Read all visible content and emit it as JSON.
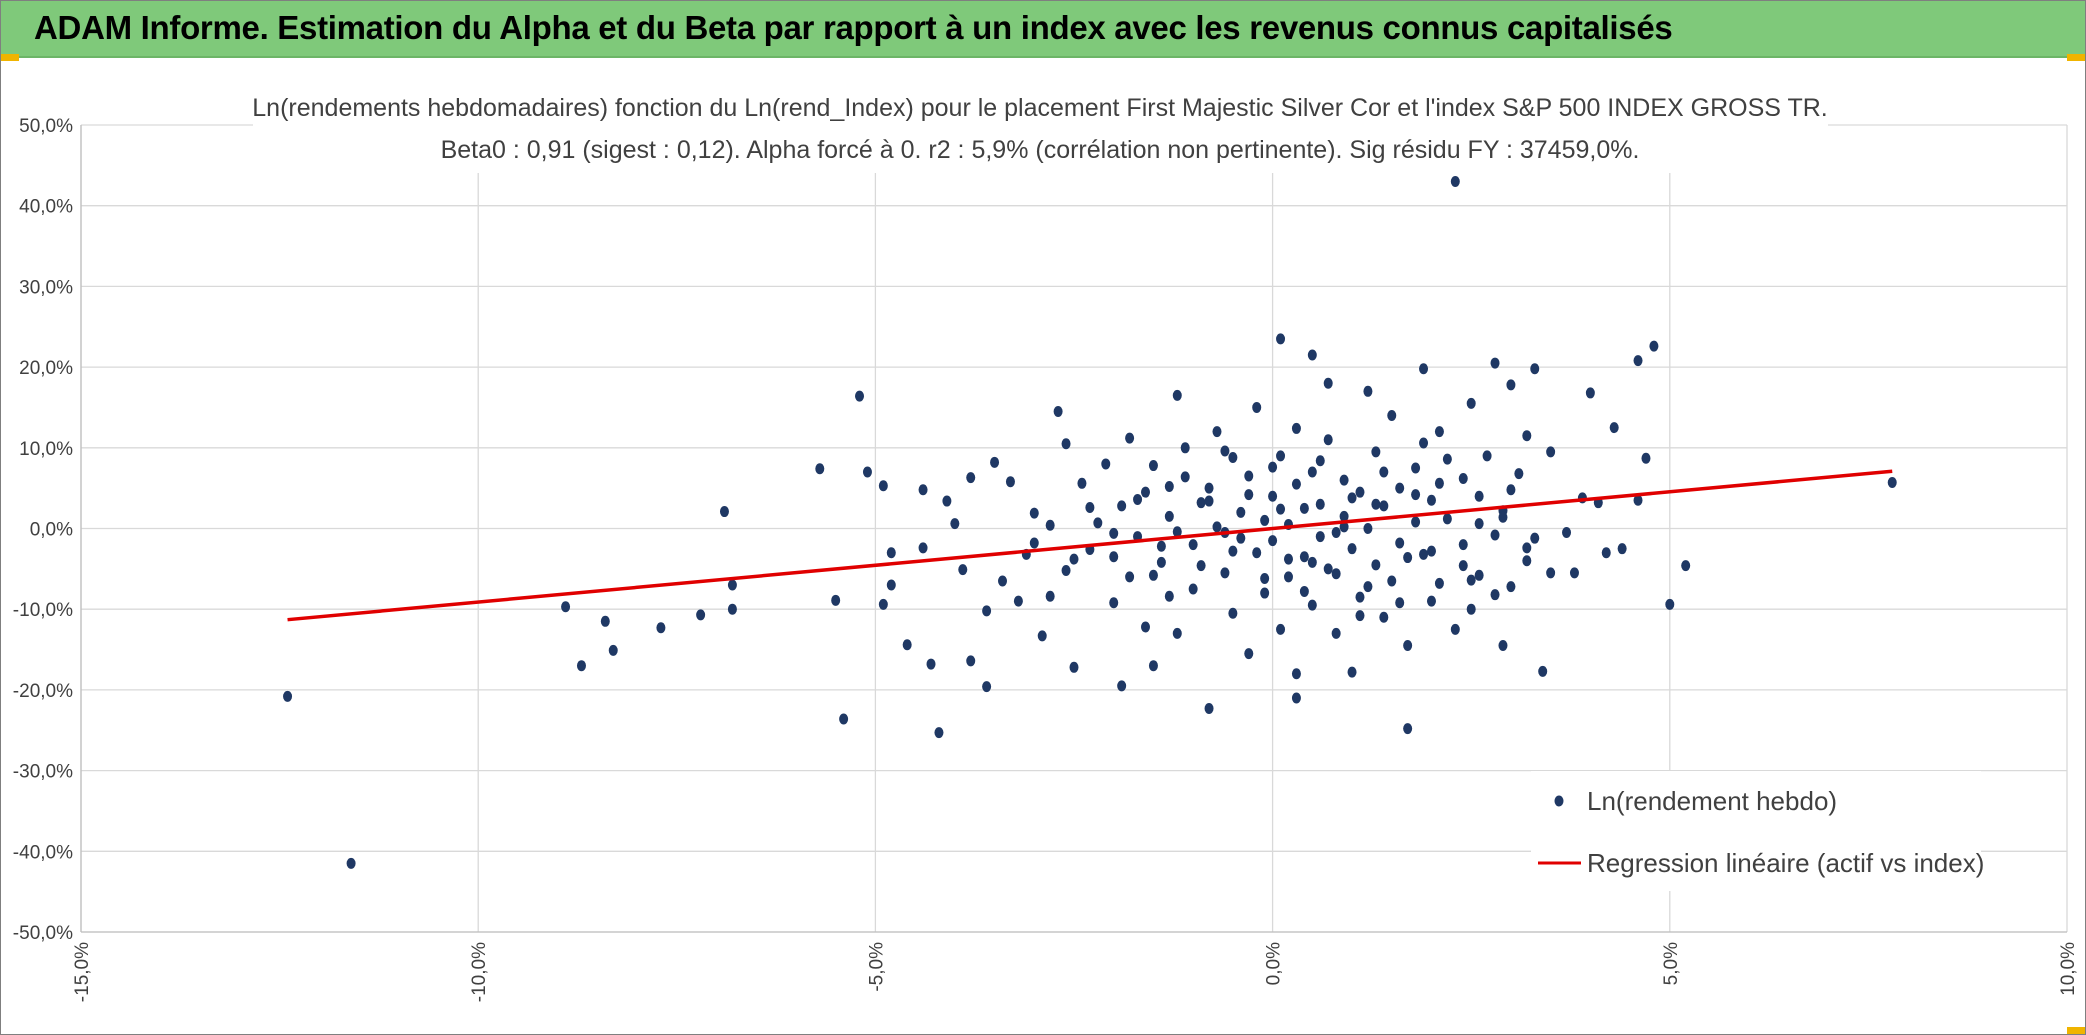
{
  "header": {
    "title": "ADAM Informe. Estimation du Alpha et du Beta par rapport à un index avec les revenus connus capitalisés"
  },
  "colors": {
    "banner": "#7fc97a",
    "points": "#1f3864",
    "regression": "#e00000",
    "grid": "#d9d9d9",
    "accent": "#f0b400"
  },
  "chart_data": {
    "type": "scatter",
    "title_line1": "Ln(rendements hebdomadaires) fonction du Ln(rend_Index) pour le placement First Majestic Silver Cor et l'index S&P 500 INDEX GROSS TR.",
    "title_line2": "Beta0 : 0,91 (sigest : 0,12). Alpha forcé à 0. r2 : 5,9% (corrélation non pertinente). Sig résidu FY : 37459,0%.",
    "xlim": [
      -15,
      10
    ],
    "ylim": [
      -50,
      50
    ],
    "x_ticks": [
      "-15,0%",
      "-10,0%",
      "-5,0%",
      "0,0%",
      "5,0%",
      "10,0%"
    ],
    "y_ticks": [
      "50,0%",
      "40,0%",
      "30,0%",
      "20,0%",
      "10,0%",
      "0,0%",
      "-10,0%",
      "-20,0%",
      "-30,0%",
      "-40,0%",
      "-50,0%"
    ],
    "grid": true,
    "legend_position": "bottom-right",
    "series": [
      {
        "name": "Ln(rendement hebdo)",
        "kind": "scatter",
        "points": [
          [
            -12.4,
            -20.8
          ],
          [
            -11.6,
            -41.5
          ],
          [
            -8.9,
            -9.7
          ],
          [
            -8.7,
            -17.0
          ],
          [
            -8.4,
            -11.5
          ],
          [
            -8.3,
            -15.1
          ],
          [
            -7.7,
            -12.3
          ],
          [
            -7.2,
            -10.7
          ],
          [
            -6.9,
            2.1
          ],
          [
            -6.8,
            -7.0
          ],
          [
            -6.8,
            -10.0
          ],
          [
            -5.7,
            7.4
          ],
          [
            -5.5,
            -8.9
          ],
          [
            -5.4,
            -23.6
          ],
          [
            -5.2,
            16.4
          ],
          [
            -5.1,
            7.0
          ],
          [
            -4.9,
            5.3
          ],
          [
            -4.9,
            -9.4
          ],
          [
            -4.8,
            -3.0
          ],
          [
            -4.8,
            -7.0
          ],
          [
            -4.6,
            -14.4
          ],
          [
            -4.4,
            -2.4
          ],
          [
            -4.4,
            4.8
          ],
          [
            -4.3,
            -16.8
          ],
          [
            -4.2,
            -25.3
          ],
          [
            -4.1,
            3.4
          ],
          [
            -4.0,
            0.6
          ],
          [
            -3.9,
            -5.1
          ],
          [
            -3.8,
            -16.4
          ],
          [
            -3.8,
            6.3
          ],
          [
            -3.6,
            -10.2
          ],
          [
            -3.6,
            -19.6
          ],
          [
            -3.5,
            8.2
          ],
          [
            -3.4,
            -6.5
          ],
          [
            -3.3,
            5.8
          ],
          [
            -3.2,
            -9.0
          ],
          [
            -3.1,
            -3.2
          ],
          [
            -3.0,
            1.9
          ],
          [
            -2.9,
            -13.3
          ],
          [
            -2.8,
            -8.4
          ],
          [
            -2.7,
            14.5
          ],
          [
            -2.6,
            10.5
          ],
          [
            -2.6,
            -5.2
          ],
          [
            -2.5,
            -17.2
          ],
          [
            -2.4,
            5.6
          ],
          [
            -2.3,
            -2.6
          ],
          [
            -2.2,
            0.7
          ],
          [
            -2.1,
            8.0
          ],
          [
            -2.0,
            -9.2
          ],
          [
            -2.0,
            -3.5
          ],
          [
            -1.9,
            -19.5
          ],
          [
            -1.8,
            11.2
          ],
          [
            -1.8,
            -6.0
          ],
          [
            -1.7,
            -1.0
          ],
          [
            -1.6,
            4.5
          ],
          [
            -1.6,
            -12.2
          ],
          [
            -1.5,
            -17.0
          ],
          [
            -1.5,
            7.8
          ],
          [
            -1.4,
            -4.2
          ],
          [
            -1.3,
            -8.4
          ],
          [
            -1.3,
            1.5
          ],
          [
            -1.2,
            16.5
          ],
          [
            -1.2,
            -13.0
          ],
          [
            -1.1,
            10.0
          ],
          [
            -1.0,
            -2.0
          ],
          [
            -1.0,
            -7.5
          ],
          [
            -0.9,
            3.2
          ],
          [
            -0.8,
            -22.3
          ],
          [
            -0.8,
            5.0
          ],
          [
            -0.7,
            12.0
          ],
          [
            -0.6,
            -5.5
          ],
          [
            -0.6,
            -0.5
          ],
          [
            -0.5,
            8.8
          ],
          [
            -0.5,
            -10.5
          ],
          [
            -0.4,
            2.0
          ],
          [
            -0.3,
            -15.5
          ],
          [
            -0.3,
            6.5
          ],
          [
            -0.2,
            -3.0
          ],
          [
            -0.2,
            15.0
          ],
          [
            -0.1,
            -8.0
          ],
          [
            -0.1,
            1.0
          ],
          [
            0.0,
            4.0
          ],
          [
            0.0,
            -1.5
          ],
          [
            0.1,
            23.5
          ],
          [
            0.1,
            -12.5
          ],
          [
            0.1,
            9.0
          ],
          [
            0.2,
            -6.0
          ],
          [
            0.2,
            0.5
          ],
          [
            0.3,
            -18.0
          ],
          [
            0.3,
            5.5
          ],
          [
            0.3,
            -21.0
          ],
          [
            0.4,
            2.5
          ],
          [
            0.4,
            -3.5
          ],
          [
            0.5,
            21.5
          ],
          [
            0.5,
            -9.5
          ],
          [
            0.5,
            7.0
          ],
          [
            0.6,
            -1.0
          ],
          [
            0.6,
            3.0
          ],
          [
            0.7,
            18.0
          ],
          [
            0.7,
            -5.0
          ],
          [
            0.7,
            11.0
          ],
          [
            0.8,
            -0.5
          ],
          [
            0.8,
            -13.0
          ],
          [
            0.9,
            1.5
          ],
          [
            0.9,
            6.0
          ],
          [
            1.0,
            -2.5
          ],
          [
            1.0,
            -17.8
          ],
          [
            1.1,
            4.5
          ],
          [
            1.1,
            -8.5
          ],
          [
            1.2,
            17.0
          ],
          [
            1.2,
            0.0
          ],
          [
            1.3,
            -4.5
          ],
          [
            1.3,
            9.5
          ],
          [
            1.4,
            -11.0
          ],
          [
            1.4,
            2.8
          ],
          [
            1.5,
            -6.5
          ],
          [
            1.5,
            14.0
          ],
          [
            1.6,
            -1.8
          ],
          [
            1.6,
            5.0
          ],
          [
            1.7,
            -24.8
          ],
          [
            1.7,
            -14.5
          ],
          [
            1.8,
            0.8
          ],
          [
            1.8,
            7.5
          ],
          [
            1.9,
            -3.2
          ],
          [
            1.9,
            19.8
          ],
          [
            2.0,
            -9.0
          ],
          [
            2.0,
            3.5
          ],
          [
            2.1,
            12.0
          ],
          [
            2.1,
            -6.8
          ],
          [
            2.2,
            1.2
          ],
          [
            2.3,
            43.0
          ],
          [
            2.3,
            -12.5
          ],
          [
            2.4,
            6.2
          ],
          [
            2.4,
            -2.0
          ],
          [
            2.5,
            15.5
          ],
          [
            2.5,
            -10.0
          ],
          [
            2.6,
            4.0
          ],
          [
            2.6,
            -5.8
          ],
          [
            2.7,
            9.0
          ],
          [
            2.8,
            -0.8
          ],
          [
            2.8,
            20.5
          ],
          [
            2.9,
            -14.5
          ],
          [
            2.9,
            2.2
          ],
          [
            3.0,
            17.8
          ],
          [
            3.0,
            -7.2
          ],
          [
            3.1,
            6.8
          ],
          [
            3.2,
            -4.0
          ],
          [
            3.2,
            11.5
          ],
          [
            3.3,
            19.8
          ],
          [
            3.3,
            -1.2
          ],
          [
            3.4,
            -17.7
          ],
          [
            3.5,
            -5.5
          ],
          [
            3.5,
            9.5
          ],
          [
            3.7,
            -0.5
          ],
          [
            3.8,
            -5.5
          ],
          [
            3.9,
            3.8
          ],
          [
            4.0,
            16.8
          ],
          [
            4.1,
            3.2
          ],
          [
            4.2,
            -3.0
          ],
          [
            4.3,
            12.5
          ],
          [
            4.4,
            -2.5
          ],
          [
            4.6,
            3.5
          ],
          [
            4.6,
            20.8
          ],
          [
            4.7,
            8.7
          ],
          [
            4.8,
            22.6
          ],
          [
            5.0,
            -9.4
          ],
          [
            5.2,
            -4.6
          ],
          [
            7.8,
            5.7
          ],
          [
            -3.0,
            -1.8
          ],
          [
            -2.8,
            0.4
          ],
          [
            -2.5,
            -3.8
          ],
          [
            -2.3,
            2.6
          ],
          [
            -2.0,
            -0.6
          ],
          [
            -1.7,
            3.6
          ],
          [
            -1.4,
            -2.2
          ],
          [
            -1.1,
            6.4
          ],
          [
            -0.9,
            -4.6
          ],
          [
            -0.7,
            0.2
          ],
          [
            -0.5,
            -2.8
          ],
          [
            -0.3,
            4.2
          ],
          [
            -0.1,
            -6.2
          ],
          [
            0.0,
            7.6
          ],
          [
            0.2,
            -3.8
          ],
          [
            0.4,
            -7.8
          ],
          [
            0.6,
            8.4
          ],
          [
            0.8,
            -5.6
          ],
          [
            1.0,
            3.8
          ],
          [
            1.2,
            -7.2
          ],
          [
            1.4,
            7.0
          ],
          [
            1.6,
            -9.2
          ],
          [
            1.8,
            4.2
          ],
          [
            2.0,
            -2.8
          ],
          [
            2.2,
            8.6
          ],
          [
            2.4,
            -4.6
          ],
          [
            2.6,
            0.6
          ],
          [
            2.8,
            -8.2
          ],
          [
            3.0,
            4.8
          ],
          [
            3.2,
            -2.4
          ],
          [
            -1.9,
            2.8
          ],
          [
            -1.5,
            -5.8
          ],
          [
            -1.2,
            -0.4
          ],
          [
            -0.8,
            3.4
          ],
          [
            -0.4,
            -1.2
          ],
          [
            0.1,
            2.4
          ],
          [
            0.5,
            -4.2
          ],
          [
            0.9,
            0.2
          ],
          [
            1.3,
            3.0
          ],
          [
            1.7,
            -3.6
          ],
          [
            2.1,
            5.6
          ],
          [
            2.5,
            -6.4
          ],
          [
            2.9,
            1.4
          ],
          [
            -0.6,
            9.6
          ],
          [
            0.3,
            12.4
          ],
          [
            1.1,
            -10.8
          ],
          [
            1.9,
            10.6
          ],
          [
            -1.3,
            5.2
          ]
        ]
      },
      {
        "name": "Regression linéaire (actif vs index)",
        "kind": "line",
        "points": [
          [
            -12.4,
            -11.3
          ],
          [
            7.8,
            7.1
          ]
        ]
      }
    ]
  }
}
